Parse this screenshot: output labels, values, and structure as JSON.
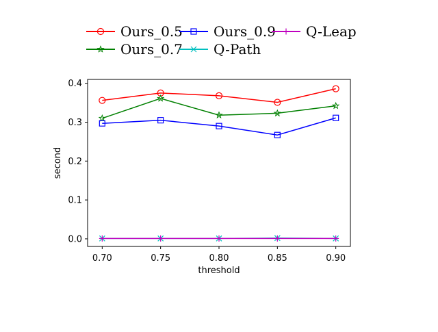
{
  "chart_data": {
    "type": "line",
    "xlabel": "threshold",
    "ylabel": "second",
    "x": [
      0.7,
      0.75,
      0.8,
      0.85,
      0.9
    ],
    "x_tick_labels": [
      "0.70",
      "0.75",
      "0.80",
      "0.85",
      "0.90"
    ],
    "y_ticks": [
      0.0,
      0.1,
      0.2,
      0.3,
      0.4
    ],
    "y_tick_labels": [
      "0.0",
      "0.1",
      "0.2",
      "0.3",
      "0.4"
    ],
    "xlim": [
      0.6875,
      0.9125
    ],
    "ylim": [
      -0.0195,
      0.41
    ],
    "grid": false,
    "legend_placement": "top-center",
    "series": [
      {
        "name": "Ours_0.5",
        "values": [
          0.356,
          0.375,
          0.368,
          0.351,
          0.386
        ],
        "color": "#ff0000",
        "marker": "circle"
      },
      {
        "name": "Ours_0.7",
        "values": [
          0.31,
          0.361,
          0.318,
          0.323,
          0.342
        ],
        "color": "#008000",
        "marker": "star"
      },
      {
        "name": "Ours_0.9",
        "values": [
          0.297,
          0.305,
          0.29,
          0.267,
          0.311
        ],
        "color": "#0000ff",
        "marker": "square"
      },
      {
        "name": "Q-Path",
        "values": [
          0.001,
          0.001,
          0.001,
          0.002,
          0.001
        ],
        "color": "#00bfbf",
        "marker": "x"
      },
      {
        "name": "Q-Leap",
        "values": [
          0.001,
          0.001,
          0.001,
          0.001,
          0.001
        ],
        "color": "#bf00bf",
        "marker": "plus"
      }
    ]
  }
}
